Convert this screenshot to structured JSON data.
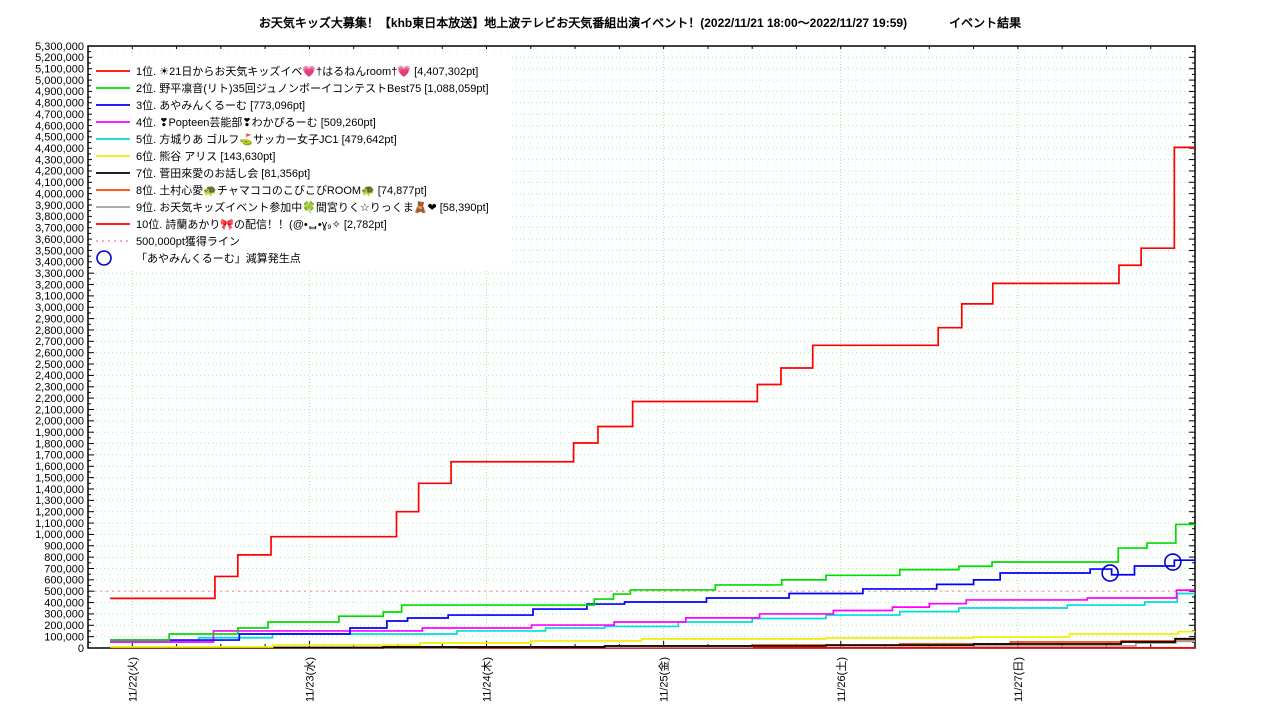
{
  "page": {
    "title": "お天気キッズ大募集！【khb東日本放送】地上波テレビお天気番組出演イベント！(2022/11/21 18:00～2022/11/27 19:59)",
    "result_label": "イベント結果"
  },
  "legend": {
    "entries": [
      {
        "label": "1位. ☀21日からお天気キッズイベ💗†はるねんroom†💗 [4,407,302pt]",
        "color": "#ff0000",
        "style": "line"
      },
      {
        "label": "2位. 野平凛音(リト)35回ジュノンボーイコンテストBest75 [1,088,059pt]",
        "color": "#00dd00",
        "style": "line"
      },
      {
        "label": "3位. あやみんくるーむ [773,096pt]",
        "color": "#0000ff",
        "style": "line"
      },
      {
        "label": "4位. ❣Popteen芸能部❣わかぴるーむ [509,260pt]",
        "color": "#ff00ff",
        "style": "line"
      },
      {
        "label": "5位. 方城りあ ゴルフ⛳サッカー女子JC1 [479,642pt]",
        "color": "#00dddd",
        "style": "line"
      },
      {
        "label": "6位. 熊谷 アリス [143,630pt]",
        "color": "#f0f000",
        "style": "line"
      },
      {
        "label": "7位. 菅田來愛のお話し会 [81,356pt]",
        "color": "#000000",
        "style": "line"
      },
      {
        "label": "8位. 土村心愛🐢チャマココのこびこびROOM🐢 [74,877pt]",
        "color": "#ff4500",
        "style": "line"
      },
      {
        "label": "9位. お天気キッズイベント参加中🍀間宮りく☆りっくま🧸❤ [58,390pt]",
        "color": "#a0a0a0",
        "style": "line"
      },
      {
        "label": "10位. 詩蘭あかり🎀の配信！！(@•ᆸ•ɣ₉✧ [2,782pt]",
        "color": "#ff0000",
        "style": "line"
      },
      {
        "label": "500,000pt獲得ライン",
        "color": "#ff9f9f",
        "style": "dotted"
      },
      {
        "label": "「あやみんくるーむ」減算発生点",
        "color": "#0000cc",
        "style": "circle"
      }
    ]
  },
  "chart_data": {
    "type": "line",
    "title": "お天気キッズ大募集！【khb東日本放送】地上波テレビお天気番組出演イベント！(2022/11/21 18:00～2022/11/27 19:59)",
    "x_unit": "hours since 2022/11/21 18:00",
    "x_range": [
      0,
      150
    ],
    "y_range": [
      0,
      5300000
    ],
    "y_tick_step": 100000,
    "y_minor_step": 50000,
    "x_minor_step_hours": 6,
    "grid": {
      "hour_color": "#c8f4f4",
      "day_color": "#9fe89f",
      "h_color": "#b2ecb2"
    },
    "x_ticks": [
      {
        "t": 6,
        "label": "11/22(火)"
      },
      {
        "t": 30,
        "label": "11/23(水)"
      },
      {
        "t": 54,
        "label": "11/24(木)"
      },
      {
        "t": 78,
        "label": "11/25(金)"
      },
      {
        "t": 102,
        "label": "11/26(土)"
      },
      {
        "t": 126,
        "label": "11/27(日)"
      }
    ],
    "threshold": {
      "value": 500000,
      "label": "500,000pt獲得ライン",
      "color": "#ff9f9f"
    },
    "markers": {
      "label": "「あやみんくるーむ」減算発生点",
      "color": "#0000cc",
      "points": [
        [
          138.5,
          660000
        ],
        [
          147,
          757000
        ]
      ]
    },
    "series": [
      {
        "rank": 1,
        "name": "☀21日からお天気キッズイベ💗†はるねんroom†💗",
        "final_pt": 4407302,
        "color": "#ff0000",
        "points": [
          [
            3,
            437000
          ],
          [
            16.5,
            437000
          ],
          [
            17.2,
            630000
          ],
          [
            19.6,
            630000
          ],
          [
            20.3,
            820000
          ],
          [
            24,
            820000
          ],
          [
            24.8,
            980000
          ],
          [
            41,
            980000
          ],
          [
            41.8,
            1200000
          ],
          [
            44,
            1200000
          ],
          [
            44.8,
            1450000
          ],
          [
            48.5,
            1450000
          ],
          [
            49.2,
            1640000
          ],
          [
            65,
            1640000
          ],
          [
            65.8,
            1805000
          ],
          [
            68.3,
            1805000
          ],
          [
            69.1,
            1950000
          ],
          [
            73,
            1950000
          ],
          [
            73.8,
            2170000
          ],
          [
            90,
            2170000
          ],
          [
            90.7,
            2320000
          ],
          [
            93.1,
            2320000
          ],
          [
            93.9,
            2465000
          ],
          [
            97.2,
            2465000
          ],
          [
            98.2,
            2665000
          ],
          [
            114.4,
            2665000
          ],
          [
            115.2,
            2820000
          ],
          [
            117.5,
            2820000
          ],
          [
            118.4,
            3030000
          ],
          [
            121.5,
            3030000
          ],
          [
            122.6,
            3210000
          ],
          [
            138.9,
            3210000
          ],
          [
            139.7,
            3370000
          ],
          [
            141.9,
            3370000
          ],
          [
            142.7,
            3520000
          ],
          [
            146.3,
            3520000
          ],
          [
            147.2,
            4407302
          ],
          [
            150,
            4407302
          ]
        ]
      },
      {
        "rank": 2,
        "name": "野平凛音(リト)35回ジュノンボーイコンテストBest75",
        "final_pt": 1088059,
        "color": "#00dd00",
        "points": [
          [
            3,
            70000
          ],
          [
            10.2,
            70000
          ],
          [
            11,
            123000
          ],
          [
            19.5,
            123000
          ],
          [
            20.3,
            176000
          ],
          [
            23.6,
            176000
          ],
          [
            24.4,
            229000
          ],
          [
            33,
            229000
          ],
          [
            34,
            280000
          ],
          [
            39.2,
            280000
          ],
          [
            40,
            317000
          ],
          [
            41.7,
            317000
          ],
          [
            42.5,
            378000
          ],
          [
            67.8,
            378000
          ],
          [
            68.6,
            431000
          ],
          [
            70.5,
            431000
          ],
          [
            71.2,
            475000
          ],
          [
            72.8,
            475000
          ],
          [
            73.5,
            511000
          ],
          [
            84.2,
            511000
          ],
          [
            85,
            555000
          ],
          [
            93.2,
            555000
          ],
          [
            94,
            600000
          ],
          [
            99.2,
            600000
          ],
          [
            100,
            640000
          ],
          [
            109.2,
            640000
          ],
          [
            110,
            690000
          ],
          [
            117.2,
            690000
          ],
          [
            118,
            720000
          ],
          [
            121.7,
            720000
          ],
          [
            122.5,
            757000
          ],
          [
            138.8,
            757000
          ],
          [
            139.6,
            880000
          ],
          [
            142.7,
            880000
          ],
          [
            143.5,
            924000
          ],
          [
            146.7,
            924000
          ],
          [
            147.4,
            1088059
          ],
          [
            150,
            1088059
          ]
        ]
      },
      {
        "rank": 3,
        "name": "あやみんくるーむ",
        "final_pt": 773096,
        "color": "#0000ff",
        "points": [
          [
            3,
            70000
          ],
          [
            19.7,
            70000
          ],
          [
            20.5,
            123000
          ],
          [
            34.7,
            123000
          ],
          [
            35.5,
            176000
          ],
          [
            39.7,
            176000
          ],
          [
            40.5,
            238000
          ],
          [
            42.5,
            238000
          ],
          [
            43.3,
            264000
          ],
          [
            48,
            264000
          ],
          [
            48.8,
            290000
          ],
          [
            59.5,
            290000
          ],
          [
            60.3,
            343000
          ],
          [
            66.8,
            343000
          ],
          [
            67.6,
            387000
          ],
          [
            71.9,
            387000
          ],
          [
            72.7,
            405000
          ],
          [
            83,
            405000
          ],
          [
            83.8,
            440000
          ],
          [
            94.2,
            440000
          ],
          [
            95,
            480000
          ],
          [
            104.2,
            480000
          ],
          [
            105,
            520000
          ],
          [
            114.2,
            520000
          ],
          [
            115,
            560000
          ],
          [
            119.2,
            560000
          ],
          [
            120,
            600000
          ],
          [
            122.8,
            600000
          ],
          [
            123.6,
            660000
          ],
          [
            135,
            660000
          ],
          [
            135.8,
            695000
          ],
          [
            138.2,
            695000
          ],
          [
            138.7,
            645000
          ],
          [
            141.2,
            645000
          ],
          [
            141.8,
            722000
          ],
          [
            146.4,
            722000
          ],
          [
            147.2,
            773096
          ],
          [
            150,
            773096
          ]
        ]
      },
      {
        "rank": 4,
        "name": "❣Popteen芸能部❣わかぴるーむ",
        "final_pt": 509260,
        "color": "#ff00ff",
        "points": [
          [
            3,
            53000
          ],
          [
            16.2,
            53000
          ],
          [
            17,
            150000
          ],
          [
            44.5,
            150000
          ],
          [
            45.3,
            176000
          ],
          [
            59.3,
            176000
          ],
          [
            60.1,
            202000
          ],
          [
            70.5,
            202000
          ],
          [
            71.3,
            229000
          ],
          [
            80.2,
            229000
          ],
          [
            81,
            265000
          ],
          [
            90.2,
            265000
          ],
          [
            91,
            300000
          ],
          [
            100.2,
            300000
          ],
          [
            101,
            330000
          ],
          [
            108.2,
            330000
          ],
          [
            109,
            360000
          ],
          [
            113.2,
            360000
          ],
          [
            114,
            390000
          ],
          [
            118.2,
            390000
          ],
          [
            119,
            423000
          ],
          [
            134.5,
            423000
          ],
          [
            135.4,
            440000
          ],
          [
            146.9,
            440000
          ],
          [
            147.5,
            509260
          ],
          [
            150,
            509260
          ]
        ]
      },
      {
        "rank": 5,
        "name": "方城りあ ゴルフ⛳サッカー女子JC1",
        "final_pt": 479642,
        "color": "#00dddd",
        "points": [
          [
            3,
            53000
          ],
          [
            14.2,
            53000
          ],
          [
            15,
            90000
          ],
          [
            24.2,
            90000
          ],
          [
            25,
            123000
          ],
          [
            49.2,
            123000
          ],
          [
            50,
            150000
          ],
          [
            61.2,
            150000
          ],
          [
            62,
            176000
          ],
          [
            69.2,
            176000
          ],
          [
            70,
            190000
          ],
          [
            79.2,
            190000
          ],
          [
            80,
            229000
          ],
          [
            89.2,
            229000
          ],
          [
            90,
            260000
          ],
          [
            99.2,
            260000
          ],
          [
            100,
            290000
          ],
          [
            109.2,
            290000
          ],
          [
            110,
            320000
          ],
          [
            117.2,
            320000
          ],
          [
            118,
            352000
          ],
          [
            131.8,
            352000
          ],
          [
            132.7,
            378000
          ],
          [
            142.3,
            378000
          ],
          [
            143.2,
            405000
          ],
          [
            146.9,
            405000
          ],
          [
            147.6,
            479642
          ],
          [
            150,
            479642
          ]
        ]
      },
      {
        "rank": 6,
        "name": "熊谷 アリス",
        "final_pt": 143630,
        "color": "#f0f000",
        "points": [
          [
            3,
            9000
          ],
          [
            24.2,
            9000
          ],
          [
            25,
            26000
          ],
          [
            44.2,
            26000
          ],
          [
            45,
            44000
          ],
          [
            59.2,
            44000
          ],
          [
            60,
            62000
          ],
          [
            74.2,
            62000
          ],
          [
            75,
            79000
          ],
          [
            99.2,
            79000
          ],
          [
            100,
            88000
          ],
          [
            119.2,
            88000
          ],
          [
            120,
            97000
          ],
          [
            132.2,
            97000
          ],
          [
            133,
            123000
          ],
          [
            147,
            123000
          ],
          [
            147.7,
            143630
          ],
          [
            150,
            143630
          ]
        ]
      },
      {
        "rank": 7,
        "name": "菅田來愛のお話し会",
        "final_pt": 81356,
        "color": "#000000",
        "points": [
          [
            3,
            4000
          ],
          [
            39.2,
            4000
          ],
          [
            40,
            9000
          ],
          [
            69.2,
            9000
          ],
          [
            70,
            18000
          ],
          [
            99.2,
            18000
          ],
          [
            100,
            26000
          ],
          [
            119.2,
            26000
          ],
          [
            120,
            35000
          ],
          [
            139.2,
            35000
          ],
          [
            140,
            53000
          ],
          [
            146.5,
            53000
          ],
          [
            147.3,
            81356
          ],
          [
            150,
            81356
          ]
        ]
      },
      {
        "rank": 8,
        "name": "土村心愛🐢チャマココのこびこびROOM🐢",
        "final_pt": 74877,
        "color": "#ff4500",
        "points": [
          [
            3,
            4000
          ],
          [
            39.2,
            4000
          ],
          [
            40,
            9000
          ],
          [
            69.2,
            9000
          ],
          [
            70,
            18000
          ],
          [
            89.2,
            18000
          ],
          [
            90,
            26000
          ],
          [
            109.2,
            26000
          ],
          [
            110,
            35000
          ],
          [
            124.2,
            35000
          ],
          [
            125,
            53000
          ],
          [
            139.2,
            53000
          ],
          [
            140,
            62000
          ],
          [
            146.8,
            62000
          ],
          [
            147.4,
            74877
          ],
          [
            150,
            74877
          ]
        ]
      },
      {
        "rank": 9,
        "name": "お天気キッズイベント参加中🍀間宮りく☆りっくま🧸❤",
        "final_pt": 58390,
        "color": "#a0a0a0",
        "points": [
          [
            3,
            3000
          ],
          [
            49.2,
            3000
          ],
          [
            50,
            9000
          ],
          [
            89.2,
            9000
          ],
          [
            90,
            18000
          ],
          [
            141.2,
            18000
          ],
          [
            142,
            44000
          ],
          [
            146.8,
            44000
          ],
          [
            147.4,
            58390
          ],
          [
            150,
            58390
          ]
        ]
      },
      {
        "rank": 10,
        "name": "詩蘭あかり🎀の配信！！(@•ᆸ•ɣ₉✧",
        "final_pt": 2782,
        "color": "#ff0000",
        "points": [
          [
            3,
            1500
          ],
          [
            150,
            2782
          ]
        ]
      }
    ]
  }
}
